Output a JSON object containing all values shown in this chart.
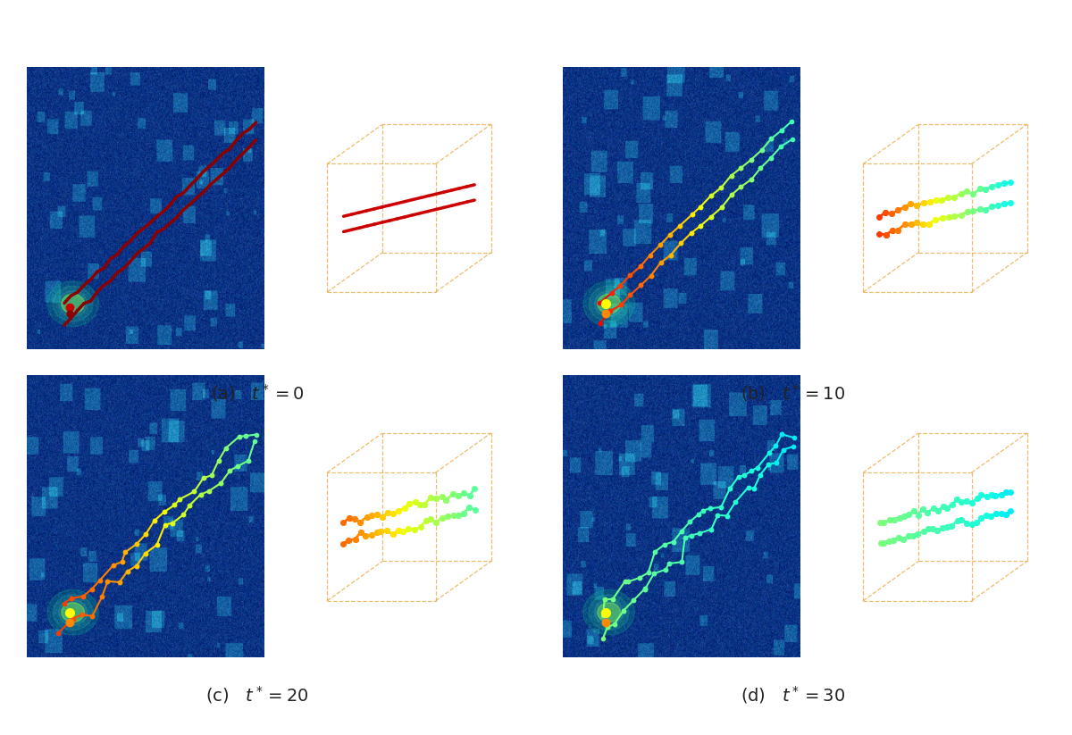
{
  "panels": [
    {
      "label": "(a)",
      "tstar": "0"
    },
    {
      "label": "(b)",
      "tstar": "10"
    },
    {
      "label": "(c)",
      "tstar": "20"
    },
    {
      "label": "(d)",
      "tstar": "30"
    }
  ],
  "caption_fontsize": 14,
  "background_color": "#ffffff",
  "label_color": "#333333",
  "tstar_color": "#0044cc",
  "cube_edge_color": "#e8a030",
  "cube_alpha": 0.6,
  "vel_bg_colors": [
    "#0a3580",
    "#0a47a0",
    "#0a47a0",
    "#0a3d96"
  ],
  "noise_colors": [
    "#1a7a9a",
    "#1a7a9a",
    "#1a7a9a",
    "#1a7a9a"
  ],
  "glow_colors": [
    "#00ff88",
    "#00ff88",
    "#00ff88",
    "#00ff88"
  ],
  "vortex_colors_t0": [
    "#8b0000",
    "#cc0000"
  ],
  "vortex_colors_t10": [
    [
      "#ff0000",
      "#ff8800",
      "#ffff00",
      "#00cc00"
    ],
    [
      "#ff0000",
      "#ff8800",
      "#ffff00",
      "#00cc00"
    ]
  ],
  "vortex_colors_t20": [
    [
      "#ff0000",
      "#ff8800",
      "#ffff00",
      "#00cc00",
      "#00aa00"
    ],
    [
      "#ff0000",
      "#ff8800",
      "#ffff00",
      "#00cc00",
      "#00aa00"
    ]
  ],
  "vortex_colors_t30": [
    [
      "#00aa00",
      "#88cc00",
      "#ffff00"
    ],
    [
      "#00aa00",
      "#88cc00",
      "#ffff00"
    ]
  ]
}
